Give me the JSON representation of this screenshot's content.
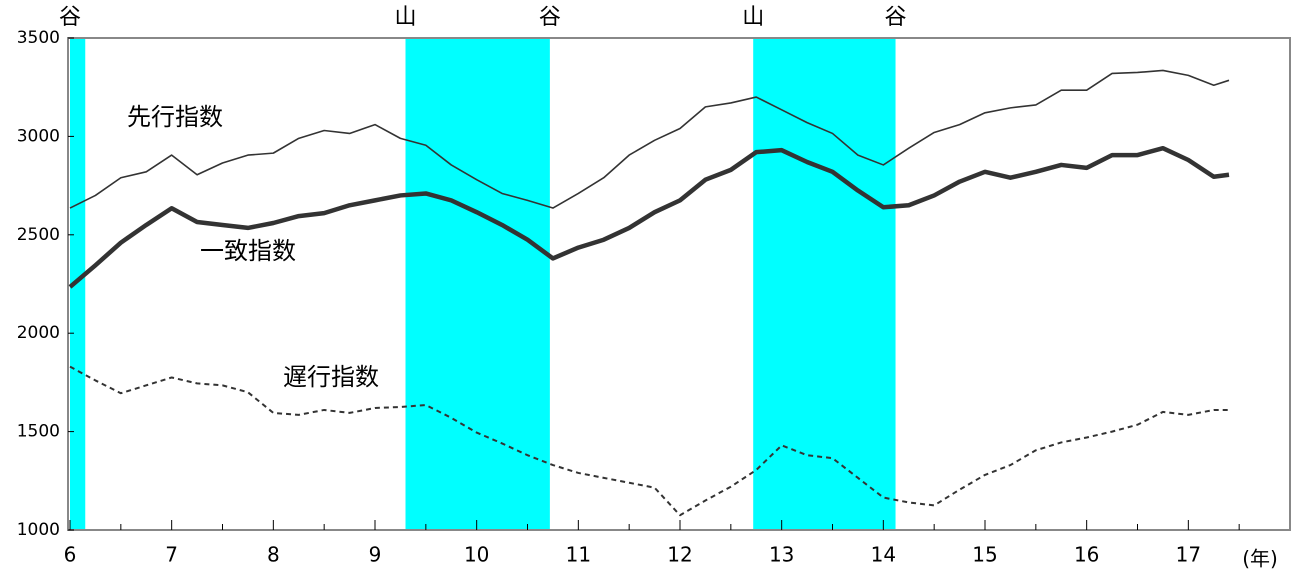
{
  "chart_data": {
    "type": "line",
    "xlabel": "(年)",
    "xlim": [
      6,
      18
    ],
    "xticks": [
      6,
      7,
      8,
      9,
      10,
      11,
      12,
      13,
      14,
      15,
      16,
      17
    ],
    "ylim": [
      1000,
      3500
    ],
    "yticks": [
      1000,
      1500,
      2000,
      2500,
      3000,
      3500
    ],
    "shaded_periods": {
      "color": "#00ffff",
      "ranges": [
        [
          6.0,
          6.15
        ],
        [
          9.3,
          10.72
        ],
        [
          12.72,
          14.12
        ]
      ]
    },
    "turning_points": [
      {
        "x": 6.0,
        "label": "谷"
      },
      {
        "x": 9.3,
        "label": "山"
      },
      {
        "x": 10.72,
        "label": "谷"
      },
      {
        "x": 12.72,
        "label": "山"
      },
      {
        "x": 14.12,
        "label": "谷"
      }
    ],
    "x": [
      6.0,
      6.25,
      6.5,
      6.75,
      7.0,
      7.25,
      7.5,
      7.75,
      8.0,
      8.25,
      8.5,
      8.75,
      9.0,
      9.25,
      9.5,
      9.75,
      10.0,
      10.25,
      10.5,
      10.75,
      11.0,
      11.25,
      11.5,
      11.75,
      12.0,
      12.25,
      12.5,
      12.75,
      13.0,
      13.25,
      13.5,
      13.75,
      14.0,
      14.25,
      14.5,
      14.75,
      15.0,
      15.25,
      15.5,
      15.75,
      16.0,
      16.25,
      16.5,
      16.75,
      17.0,
      17.25,
      17.4
    ],
    "series": [
      {
        "name": "先行指数",
        "color": "#333333",
        "width": 1.6,
        "dash": false,
        "values": [
          2636,
          2700,
          2790,
          2820,
          2905,
          2805,
          2865,
          2905,
          2915,
          2990,
          3030,
          3015,
          3060,
          2990,
          2955,
          2855,
          2780,
          2710,
          2675,
          2636,
          2710,
          2790,
          2905,
          2980,
          3040,
          3150,
          3170,
          3200,
          3135,
          3070,
          3015,
          2905,
          2855,
          2940,
          3020,
          3060,
          3120,
          3145,
          3160,
          3235,
          3235,
          3320,
          3325,
          3335,
          3310,
          3260,
          3285
        ]
      },
      {
        "name": "一致指数",
        "color": "#333333",
        "width": 4.5,
        "dash": false,
        "values": [
          2235,
          2345,
          2460,
          2550,
          2635,
          2565,
          2550,
          2535,
          2560,
          2595,
          2610,
          2650,
          2675,
          2700,
          2710,
          2675,
          2615,
          2550,
          2475,
          2380,
          2435,
          2475,
          2535,
          2615,
          2675,
          2780,
          2830,
          2920,
          2930,
          2870,
          2820,
          2725,
          2640,
          2650,
          2700,
          2770,
          2820,
          2790,
          2820,
          2855,
          2840,
          2905,
          2905,
          2940,
          2880,
          2795,
          2805
        ]
      },
      {
        "name": "遅行指数",
        "color": "#333333",
        "width": 2,
        "dash": true,
        "values": [
          1830,
          1760,
          1695,
          1735,
          1775,
          1745,
          1735,
          1700,
          1595,
          1585,
          1610,
          1595,
          1620,
          1625,
          1635,
          1570,
          1495,
          1440,
          1380,
          1330,
          1290,
          1265,
          1240,
          1215,
          1075,
          1150,
          1220,
          1305,
          1430,
          1380,
          1365,
          1265,
          1165,
          1140,
          1125,
          1205,
          1280,
          1330,
          1405,
          1445,
          1470,
          1500,
          1535,
          1600,
          1585,
          1610,
          1610
        ]
      }
    ]
  }
}
